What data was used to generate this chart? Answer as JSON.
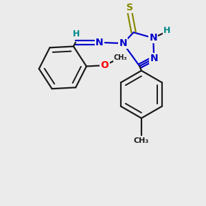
{
  "bg_color": "#ebebeb",
  "bond_color": "#1a1a1a",
  "bond_width": 1.6,
  "atom_colors": {
    "O": "#ff0000",
    "N": "#0000cc",
    "S": "#888800",
    "H": "#008888",
    "C": "#1a1a1a"
  },
  "font_size": 10,
  "font_size_h": 9
}
